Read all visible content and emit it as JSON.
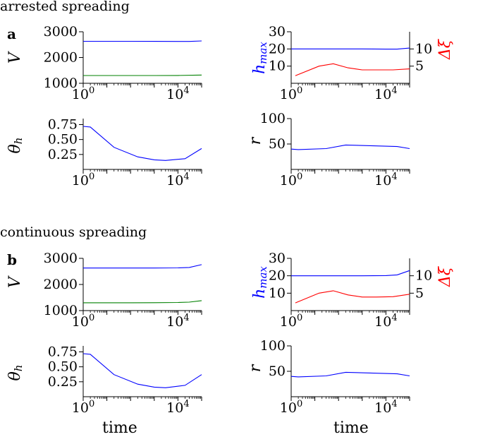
{
  "figure": {
    "sections": [
      {
        "heading": "arrested spreading",
        "panel_label": "a"
      },
      {
        "heading": "continuous spreading",
        "panel_label": "b"
      }
    ],
    "xlabel": "time"
  },
  "colors": {
    "blue": "#0000ff",
    "green": "#008000",
    "red": "#ff0000",
    "axis": "#000000"
  },
  "chart_data": [
    {
      "id": "a-V",
      "type": "line",
      "ylabel": "V",
      "xscale": "log",
      "xlim": [
        1,
        100000
      ],
      "ylim": [
        1000,
        3000
      ],
      "xticks": [
        {
          "v": 1,
          "base": "10",
          "exp": "0"
        },
        {
          "v": 10000,
          "base": "10",
          "exp": "4"
        }
      ],
      "yticks": [
        {
          "v": 1000,
          "label": "1000"
        },
        {
          "v": 2000,
          "label": "2000"
        },
        {
          "v": 3000,
          "label": "3000"
        }
      ],
      "series": [
        {
          "color": "blue",
          "x": [
            1,
            10,
            100,
            1000,
            10000,
            30000,
            100000
          ],
          "y": [
            2630,
            2630,
            2630,
            2628,
            2626,
            2625,
            2645
          ]
        },
        {
          "color": "green",
          "x": [
            1,
            10,
            100,
            1000,
            10000,
            100000
          ],
          "y": [
            1300,
            1300,
            1300,
            1302,
            1305,
            1320
          ]
        }
      ]
    },
    {
      "id": "a-h",
      "type": "line",
      "ylabel": "h_max",
      "ylabel_right": "Δξ",
      "xscale": "log",
      "xlim": [
        1,
        100000
      ],
      "ylim": [
        0,
        30
      ],
      "ylim_right": [
        0,
        15
      ],
      "xticks": [
        {
          "v": 1,
          "base": "10",
          "exp": "0"
        },
        {
          "v": 10000,
          "base": "10",
          "exp": "4"
        }
      ],
      "yticks": [
        {
          "v": 10,
          "label": "10"
        },
        {
          "v": 20,
          "label": "20"
        },
        {
          "v": 30,
          "label": "30"
        }
      ],
      "yticks_right": [
        {
          "v": 5,
          "label": "5"
        },
        {
          "v": 10,
          "label": "10"
        }
      ],
      "series": [
        {
          "color": "blue",
          "axis": "left",
          "x": [
            1,
            10,
            100,
            1000,
            10000,
            30000,
            100000
          ],
          "y": [
            20,
            20,
            20,
            20,
            19.9,
            19.9,
            20.5
          ]
        },
        {
          "color": "red",
          "axis": "right",
          "x": [
            1.5,
            15,
            60,
            250,
            1000,
            4000,
            20000,
            100000
          ],
          "y": [
            2.2,
            5,
            5.7,
            4.5,
            3.9,
            3.9,
            3.9,
            4.2
          ]
        }
      ]
    },
    {
      "id": "a-theta",
      "type": "line",
      "ylabel": "θ_h",
      "xscale": "log",
      "xlim": [
        1,
        100000
      ],
      "ylim": [
        0,
        0.85
      ],
      "xticks": [
        {
          "v": 1,
          "base": "10",
          "exp": "0"
        },
        {
          "v": 10000,
          "base": "10",
          "exp": "4"
        }
      ],
      "yticks": [
        {
          "v": 0.25,
          "label": "0.25"
        },
        {
          "v": 0.5,
          "label": "0.50"
        },
        {
          "v": 0.75,
          "label": "0.75"
        }
      ],
      "series": [
        {
          "color": "blue",
          "x": [
            1,
            2,
            20,
            200,
            1000,
            3000,
            20000,
            100000
          ],
          "y": [
            0.72,
            0.71,
            0.37,
            0.21,
            0.16,
            0.15,
            0.18,
            0.35
          ]
        }
      ]
    },
    {
      "id": "a-r",
      "type": "line",
      "ylabel": "r",
      "xscale": "log",
      "xlim": [
        1,
        100000
      ],
      "ylim": [
        0,
        100
      ],
      "xticks": [
        {
          "v": 1,
          "base": "10",
          "exp": "0"
        },
        {
          "v": 10000,
          "base": "10",
          "exp": "4"
        }
      ],
      "yticks": [
        {
          "v": 50,
          "label": "50"
        },
        {
          "v": 100,
          "label": "100"
        }
      ],
      "series": [
        {
          "color": "blue",
          "x": [
            1,
            2,
            30,
            200,
            30000,
            100000
          ],
          "y": [
            40,
            39,
            41,
            48,
            45,
            41
          ]
        }
      ]
    },
    {
      "id": "b-V",
      "type": "line",
      "ylabel": "V",
      "xscale": "log",
      "xlim": [
        1,
        100000
      ],
      "ylim": [
        1000,
        3000
      ],
      "xticks": [
        {
          "v": 1,
          "base": "10",
          "exp": "0"
        },
        {
          "v": 10000,
          "base": "10",
          "exp": "4"
        }
      ],
      "yticks": [
        {
          "v": 1000,
          "label": "1000"
        },
        {
          "v": 2000,
          "label": "2000"
        },
        {
          "v": 3000,
          "label": "3000"
        }
      ],
      "series": [
        {
          "color": "blue",
          "x": [
            1,
            10,
            100,
            1000,
            10000,
            30000,
            100000
          ],
          "y": [
            2630,
            2630,
            2630,
            2630,
            2635,
            2650,
            2760
          ]
        },
        {
          "color": "green",
          "x": [
            1,
            10,
            100,
            1000,
            10000,
            30000,
            100000
          ],
          "y": [
            1300,
            1300,
            1300,
            1302,
            1310,
            1325,
            1380
          ]
        }
      ]
    },
    {
      "id": "b-h",
      "type": "line",
      "ylabel": "h_max",
      "ylabel_right": "Δξ",
      "xscale": "log",
      "xlim": [
        1,
        100000
      ],
      "ylim": [
        0,
        30
      ],
      "ylim_right": [
        0,
        15
      ],
      "xticks": [
        {
          "v": 1,
          "base": "10",
          "exp": "0"
        },
        {
          "v": 10000,
          "base": "10",
          "exp": "4"
        }
      ],
      "yticks": [
        {
          "v": 10,
          "label": "10"
        },
        {
          "v": 20,
          "label": "20"
        },
        {
          "v": 30,
          "label": "30"
        }
      ],
      "yticks_right": [
        {
          "v": 5,
          "label": "5"
        },
        {
          "v": 10,
          "label": "10"
        }
      ],
      "series": [
        {
          "color": "blue",
          "axis": "left",
          "x": [
            1,
            10,
            100,
            1000,
            10000,
            30000,
            100000
          ],
          "y": [
            20,
            20,
            20,
            20,
            20.1,
            20.5,
            23
          ]
        },
        {
          "color": "red",
          "axis": "right",
          "x": [
            1.5,
            15,
            60,
            250,
            1000,
            4000,
            20000,
            100000
          ],
          "y": [
            2.2,
            5,
            5.7,
            4.5,
            3.9,
            3.9,
            4,
            4.7
          ]
        }
      ]
    },
    {
      "id": "b-theta",
      "type": "line",
      "ylabel": "θ_h",
      "xscale": "log",
      "xlim": [
        1,
        100000
      ],
      "ylim": [
        0,
        0.85
      ],
      "xticks": [
        {
          "v": 1,
          "base": "10",
          "exp": "0"
        },
        {
          "v": 10000,
          "base": "10",
          "exp": "4"
        }
      ],
      "yticks": [
        {
          "v": 0.25,
          "label": "0.25"
        },
        {
          "v": 0.5,
          "label": "0.50"
        },
        {
          "v": 0.75,
          "label": "0.75"
        }
      ],
      "series": [
        {
          "color": "blue",
          "x": [
            1,
            2,
            20,
            200,
            1000,
            3000,
            20000,
            100000
          ],
          "y": [
            0.72,
            0.71,
            0.37,
            0.21,
            0.16,
            0.15,
            0.19,
            0.37
          ]
        }
      ]
    },
    {
      "id": "b-r",
      "type": "line",
      "ylabel": "r",
      "xscale": "log",
      "xlim": [
        1,
        100000
      ],
      "ylim": [
        0,
        100
      ],
      "xticks": [
        {
          "v": 1,
          "base": "10",
          "exp": "0"
        },
        {
          "v": 10000,
          "base": "10",
          "exp": "4"
        }
      ],
      "yticks": [
        {
          "v": 50,
          "label": "50"
        },
        {
          "v": 100,
          "label": "100"
        }
      ],
      "series": [
        {
          "color": "blue",
          "x": [
            1,
            2,
            30,
            200,
            30000,
            100000
          ],
          "y": [
            40,
            39,
            41,
            48,
            45,
            41
          ]
        }
      ]
    }
  ]
}
